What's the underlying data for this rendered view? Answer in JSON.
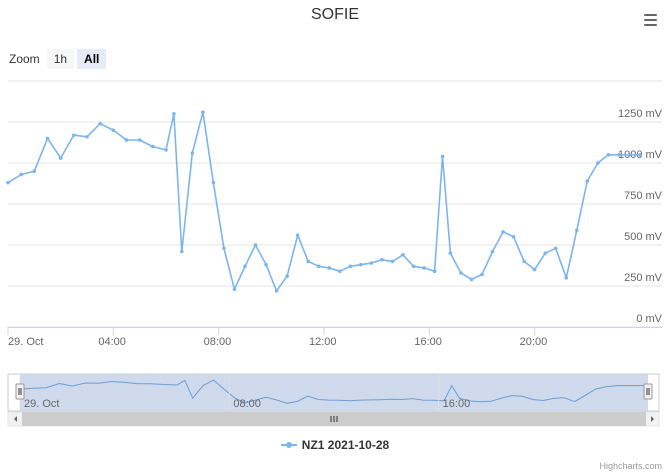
{
  "title": "SOFIE",
  "menu_icon": "hamburger-menu-icon",
  "range_selector": {
    "label": "Zoom",
    "buttons": [
      {
        "label": "1h",
        "active": false
      },
      {
        "label": "All",
        "active": true
      }
    ]
  },
  "legend": {
    "label": "NZ1 2021-10-28"
  },
  "credits": "Highcharts.com",
  "chart_data": {
    "type": "line",
    "title": "SOFIE",
    "y_tick_labels": [
      "0 mV",
      "250 mV",
      "500 mV",
      "750 mV",
      "1000 mV",
      "1250 mV"
    ],
    "ylim": [
      0,
      1500
    ],
    "x_tick_labels": [
      "29. Oct",
      "04:00",
      "08:00",
      "12:00",
      "16:00",
      "20:00"
    ],
    "xlim": [
      0,
      24
    ],
    "navigator_labels": [
      "29. Oct",
      "08:00",
      "16:00"
    ],
    "grid": true,
    "legend_position": "bottom-center",
    "series": [
      {
        "name": "NZ1 2021-10-28",
        "color": "#7cb5ec",
        "x": [
          0,
          0.5,
          1,
          1.5,
          2,
          2.5,
          3,
          3.5,
          4,
          4.5,
          5,
          5.5,
          6,
          6.3,
          6.6,
          7.0,
          7.4,
          7.8,
          8.2,
          8.6,
          9.0,
          9.4,
          9.8,
          10.2,
          10.6,
          11.0,
          11.4,
          11.8,
          12.2,
          12.6,
          13.0,
          13.4,
          13.8,
          14.2,
          14.6,
          15.0,
          15.4,
          15.8,
          16.2,
          16.5,
          16.8,
          17.2,
          17.6,
          18.0,
          18.4,
          18.8,
          19.2,
          19.6,
          20.0,
          20.4,
          20.8,
          21.2,
          21.6,
          22.0,
          22.4,
          22.8,
          23.2,
          23.6,
          24.0
        ],
        "y": [
          880,
          930,
          950,
          1150,
          1030,
          1170,
          1160,
          1240,
          1200,
          1140,
          1140,
          1100,
          1080,
          1300,
          460,
          1060,
          1310,
          880,
          480,
          230,
          370,
          500,
          380,
          220,
          310,
          560,
          400,
          370,
          360,
          340,
          370,
          380,
          390,
          410,
          400,
          440,
          370,
          360,
          340,
          1040,
          450,
          330,
          290,
          320,
          460,
          580,
          550,
          400,
          350,
          450,
          480,
          300,
          590,
          890,
          1000,
          1050,
          1050,
          1050,
          1050
        ]
      }
    ]
  }
}
